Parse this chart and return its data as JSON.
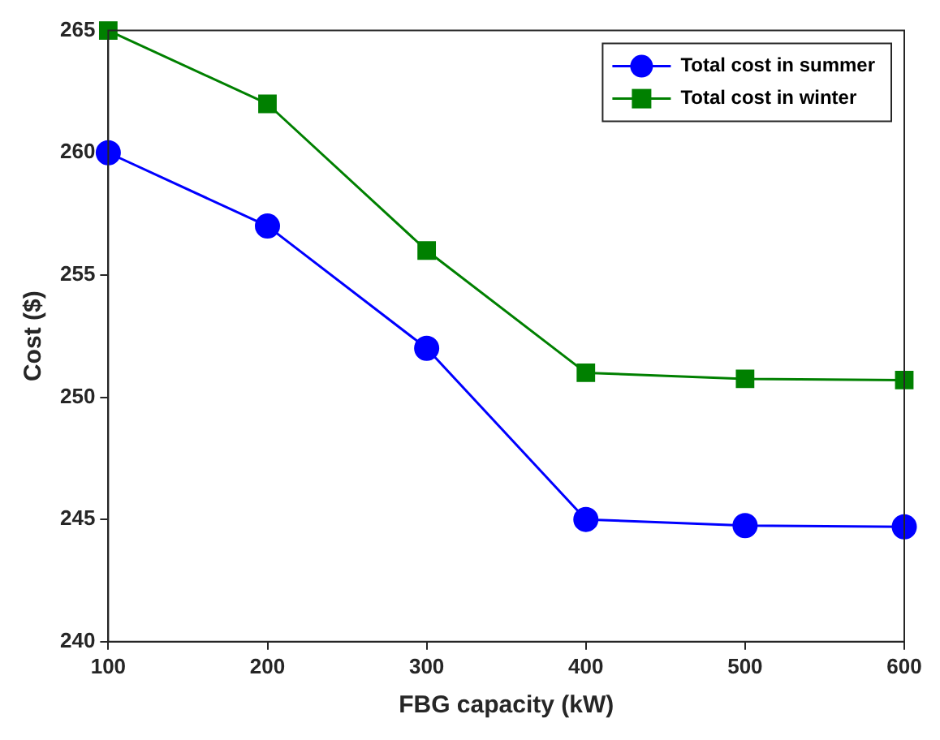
{
  "chart_data": {
    "type": "line",
    "xlabel": "FBG capacity (kW)",
    "ylabel": "Cost ($)",
    "x": [
      100,
      200,
      300,
      400,
      500,
      600
    ],
    "series": [
      {
        "name": "Total cost in summer",
        "color": "#0000ff",
        "marker": "circle",
        "values": [
          260,
          257,
          252,
          245,
          244.75,
          244.7
        ]
      },
      {
        "name": "Total cost in winter",
        "color": "#008000",
        "marker": "square",
        "values": [
          265,
          262,
          256,
          251,
          250.75,
          250.7
        ]
      }
    ],
    "xlim": [
      100,
      600
    ],
    "xticks": [
      100,
      200,
      300,
      400,
      500,
      600
    ],
    "ylim": [
      240,
      265
    ],
    "yticks": [
      240,
      245,
      250,
      255,
      260,
      265
    ],
    "grid": false,
    "legend": "top right"
  }
}
